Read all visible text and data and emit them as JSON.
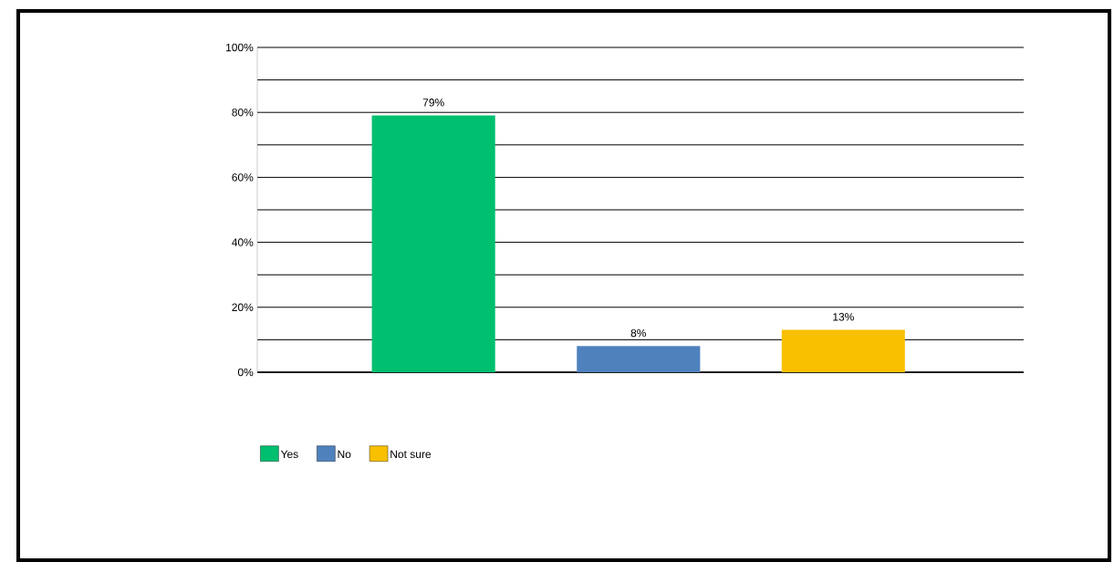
{
  "chart_data": {
    "type": "bar",
    "categories": [
      null,
      null,
      null
    ],
    "series": [
      {
        "name": "Yes",
        "color": "#00bf6f",
        "values": [
          79,
          null,
          null
        ],
        "value_labels": [
          "79%",
          null,
          null
        ]
      },
      {
        "name": "No",
        "color": "#4f81bd",
        "values": [
          null,
          8,
          null
        ],
        "value_labels": [
          null,
          "8%",
          null
        ]
      },
      {
        "name": "Not sure",
        "color": "#f9c000",
        "values": [
          null,
          null,
          13
        ],
        "value_labels": [
          null,
          null,
          "13%"
        ]
      }
    ],
    "ylim": [
      0,
      100
    ],
    "yticks": [
      {
        "value": 0,
        "label": "0%"
      },
      {
        "value": 10,
        "label": null
      },
      {
        "value": 20,
        "label": "20%"
      },
      {
        "value": 30,
        "label": null
      },
      {
        "value": 40,
        "label": "40%"
      },
      {
        "value": 50,
        "label": null
      },
      {
        "value": 60,
        "label": "60%"
      },
      {
        "value": 70,
        "label": null
      },
      {
        "value": 80,
        "label": "80%"
      },
      {
        "value": 90,
        "label": null
      },
      {
        "value": 100,
        "label": "100%"
      }
    ],
    "grid": "y",
    "legend": "bottom left"
  }
}
